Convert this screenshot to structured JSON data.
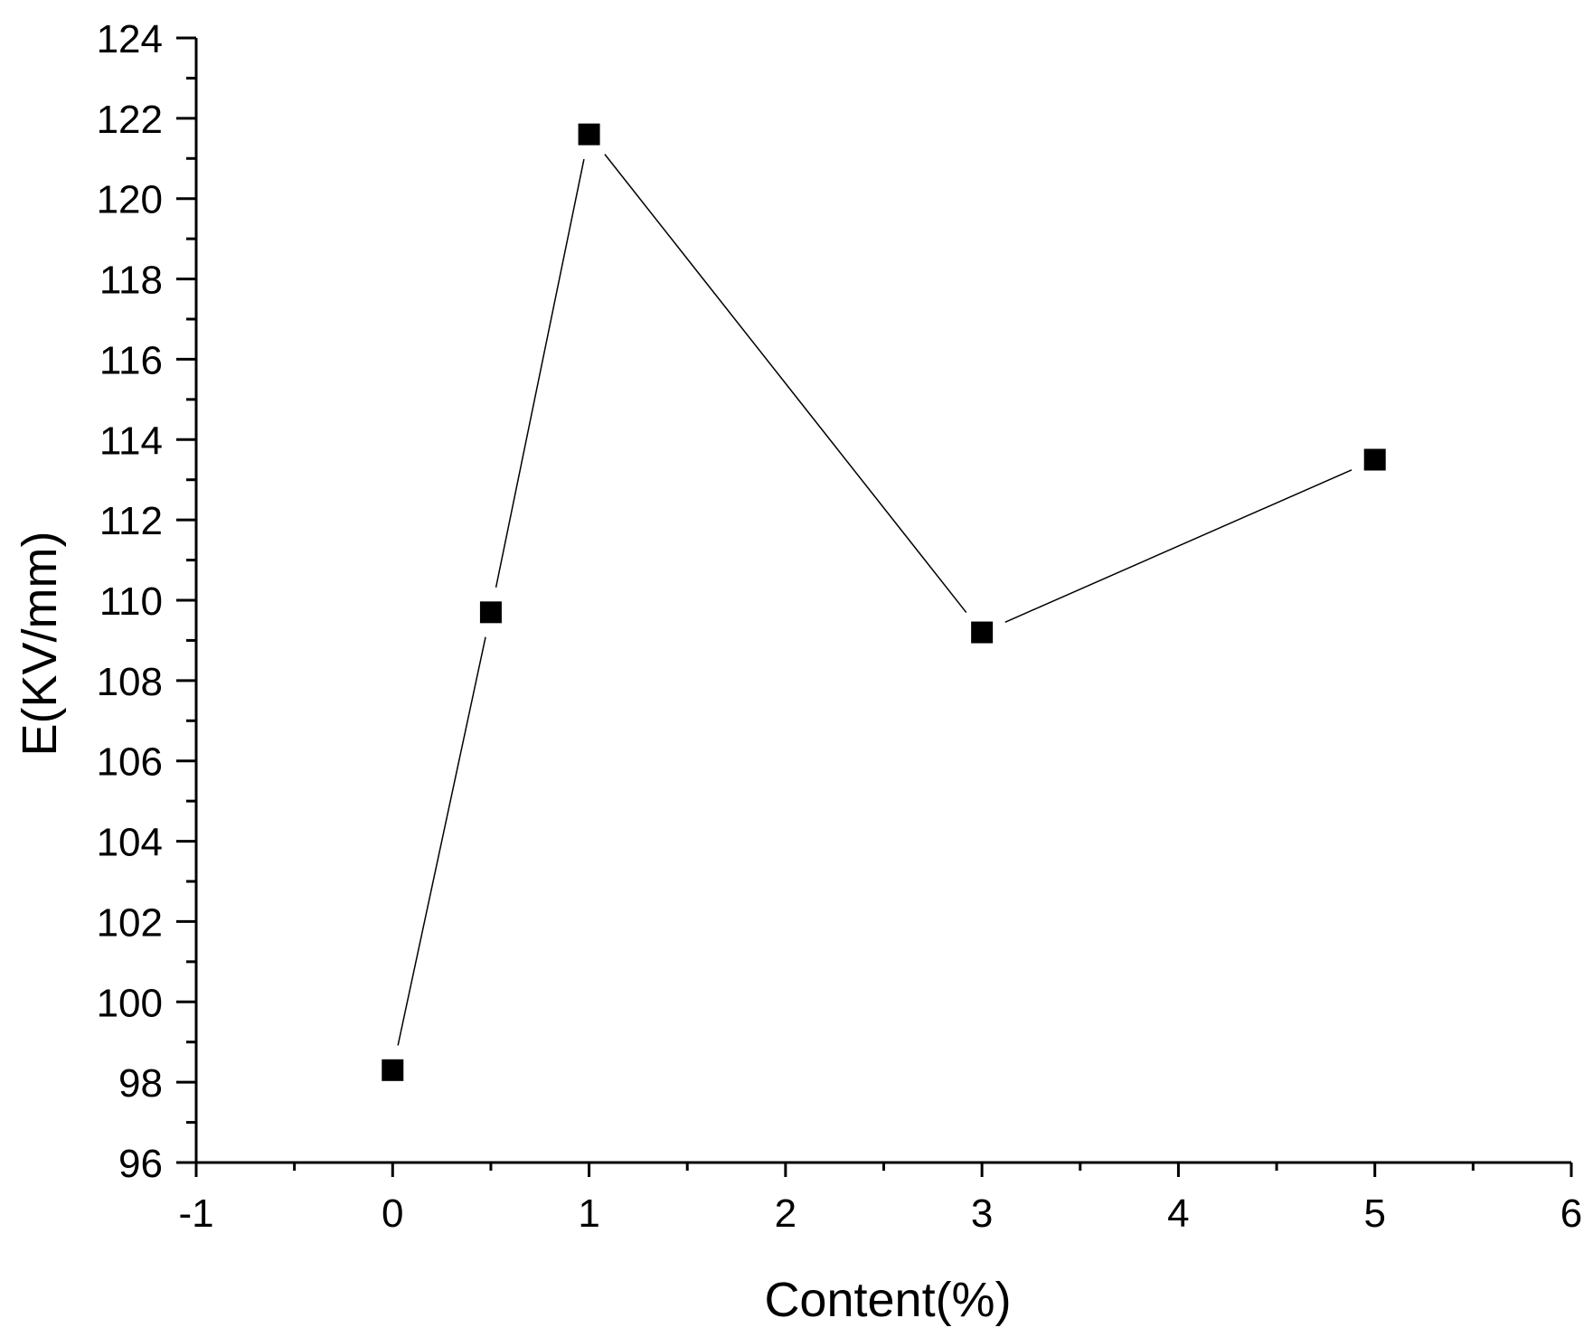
{
  "chart_data": {
    "type": "line",
    "title": "",
    "xlabel": "Content(%)",
    "ylabel": "E(KV/mm)",
    "xlim": [
      -1,
      6
    ],
    "ylim": [
      96,
      124
    ],
    "x_ticks": [
      -1,
      0,
      1,
      2,
      3,
      4,
      5,
      6
    ],
    "x_tick_labels": [
      "-1",
      "0",
      "1",
      "2",
      "3",
      "4",
      "5",
      "6"
    ],
    "y_ticks": [
      96,
      98,
      100,
      102,
      104,
      106,
      108,
      110,
      112,
      114,
      116,
      118,
      120,
      122,
      124
    ],
    "y_tick_labels": [
      "96",
      "98",
      "100",
      "102",
      "104",
      "106",
      "108",
      "110",
      "112",
      "114",
      "116",
      "118",
      "120",
      "122",
      "124"
    ],
    "grid": false,
    "legend": "none",
    "marker": "square",
    "colors": {
      "line": "#000000",
      "marker": "#000000",
      "axis": "#000000"
    },
    "series": [
      {
        "x": [
          0,
          0.5,
          1,
          3,
          5
        ],
        "y": [
          98.3,
          109.7,
          121.6,
          109.2,
          113.5
        ]
      }
    ]
  }
}
